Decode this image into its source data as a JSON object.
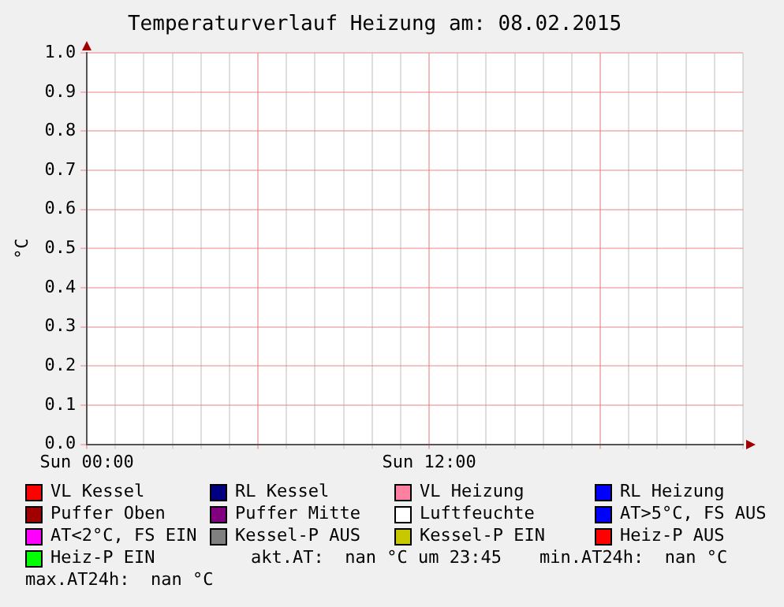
{
  "chart_data": {
    "type": "line",
    "title": "Temperaturverlauf Heizung am: 08.02.2015",
    "ylabel": "°C",
    "categories": [
      "Sun 00:00",
      null,
      null,
      null,
      null,
      null,
      null,
      null,
      null,
      null,
      null,
      null,
      "Sun 12:00",
      null,
      null,
      null,
      null,
      null,
      null,
      null,
      null,
      null,
      null,
      null
    ],
    "ylim": [
      0,
      1
    ],
    "yticks": [
      {
        "value": 0,
        "label": "0.0"
      },
      {
        "value": 0.1,
        "label": "0.1"
      },
      {
        "value": 0.2,
        "label": "0.2"
      },
      {
        "value": 0.3,
        "label": "0.3"
      },
      {
        "value": 0.4,
        "label": "0.4"
      },
      {
        "value": 0.5,
        "label": "0.5"
      },
      {
        "value": 0.6,
        "label": "0.6"
      },
      {
        "value": 0.7,
        "label": "0.7"
      },
      {
        "value": 0.8,
        "label": "0.8"
      },
      {
        "value": 0.9,
        "label": "0.9"
      },
      {
        "value": 1,
        "label": "1.0"
      }
    ],
    "grid": true,
    "legend": "bottom",
    "series": [
      {
        "name": "VL Kessel",
        "color": "#ff0000",
        "values": [
          null,
          null,
          null,
          null,
          null,
          null,
          null,
          null,
          null,
          null,
          null,
          null,
          null,
          null,
          null,
          null,
          null,
          null,
          null,
          null,
          null,
          null,
          null,
          null
        ]
      },
      {
        "name": "RL Kessel",
        "color": "#000080",
        "values": [
          null,
          null,
          null,
          null,
          null,
          null,
          null,
          null,
          null,
          null,
          null,
          null,
          null,
          null,
          null,
          null,
          null,
          null,
          null,
          null,
          null,
          null,
          null,
          null
        ]
      },
      {
        "name": "VL Heizung",
        "color": "#ff80a0",
        "values": [
          null,
          null,
          null,
          null,
          null,
          null,
          null,
          null,
          null,
          null,
          null,
          null,
          null,
          null,
          null,
          null,
          null,
          null,
          null,
          null,
          null,
          null,
          null,
          null
        ]
      },
      {
        "name": "RL Heizung",
        "color": "#0000ff",
        "values": [
          null,
          null,
          null,
          null,
          null,
          null,
          null,
          null,
          null,
          null,
          null,
          null,
          null,
          null,
          null,
          null,
          null,
          null,
          null,
          null,
          null,
          null,
          null,
          null
        ]
      },
      {
        "name": "Puffer Oben",
        "color": "#a00000",
        "values": [
          null,
          null,
          null,
          null,
          null,
          null,
          null,
          null,
          null,
          null,
          null,
          null,
          null,
          null,
          null,
          null,
          null,
          null,
          null,
          null,
          null,
          null,
          null,
          null
        ]
      },
      {
        "name": "Puffer Mitte",
        "color": "#800080",
        "values": [
          null,
          null,
          null,
          null,
          null,
          null,
          null,
          null,
          null,
          null,
          null,
          null,
          null,
          null,
          null,
          null,
          null,
          null,
          null,
          null,
          null,
          null,
          null,
          null
        ]
      },
      {
        "name": "Luftfeuchte",
        "color": "#ffffff",
        "values": [
          null,
          null,
          null,
          null,
          null,
          null,
          null,
          null,
          null,
          null,
          null,
          null,
          null,
          null,
          null,
          null,
          null,
          null,
          null,
          null,
          null,
          null,
          null,
          null
        ]
      },
      {
        "name": "AT>5°C, FS AUS",
        "color": "#0000ff",
        "values": [
          null,
          null,
          null,
          null,
          null,
          null,
          null,
          null,
          null,
          null,
          null,
          null,
          null,
          null,
          null,
          null,
          null,
          null,
          null,
          null,
          null,
          null,
          null,
          null
        ]
      },
      {
        "name": "AT<2°C, FS EIN",
        "color": "#ff00ff",
        "values": [
          null,
          null,
          null,
          null,
          null,
          null,
          null,
          null,
          null,
          null,
          null,
          null,
          null,
          null,
          null,
          null,
          null,
          null,
          null,
          null,
          null,
          null,
          null,
          null
        ]
      },
      {
        "name": "Kessel-P AUS",
        "color": "#808080",
        "values": [
          null,
          null,
          null,
          null,
          null,
          null,
          null,
          null,
          null,
          null,
          null,
          null,
          null,
          null,
          null,
          null,
          null,
          null,
          null,
          null,
          null,
          null,
          null,
          null
        ]
      },
      {
        "name": "Kessel-P EIN",
        "color": "#c8c800",
        "values": [
          null,
          null,
          null,
          null,
          null,
          null,
          null,
          null,
          null,
          null,
          null,
          null,
          null,
          null,
          null,
          null,
          null,
          null,
          null,
          null,
          null,
          null,
          null,
          null
        ]
      },
      {
        "name": "Heiz-P AUS",
        "color": "#ff0000",
        "values": [
          null,
          null,
          null,
          null,
          null,
          null,
          null,
          null,
          null,
          null,
          null,
          null,
          null,
          null,
          null,
          null,
          null,
          null,
          null,
          null,
          null,
          null,
          null,
          null
        ]
      },
      {
        "name": "Heiz-P EIN",
        "color": "#00ff00",
        "values": [
          null,
          null,
          null,
          null,
          null,
          null,
          null,
          null,
          null,
          null,
          null,
          null,
          null,
          null,
          null,
          null,
          null,
          null,
          null,
          null,
          null,
          null,
          null,
          null
        ]
      }
    ],
    "annotations": [
      "akt.AT:  nan °C um 23:45",
      "min.AT24h:  nan °C",
      "max.AT24h:  nan °C"
    ]
  }
}
